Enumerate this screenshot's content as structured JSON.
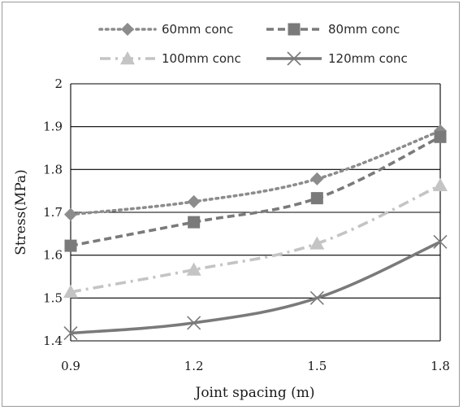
{
  "chart_data": {
    "type": "line",
    "title": "",
    "xlabel": "Joint spacing (m)",
    "ylabel": "Stress(MPa)",
    "x": [
      0.9,
      1.2,
      1.5,
      1.8
    ],
    "x_tick_labels": [
      "0.9",
      "1.2",
      "1.5",
      "1.8"
    ],
    "xlim": [
      0.9,
      1.8
    ],
    "ylim": [
      1.4,
      2.0
    ],
    "y_ticks": [
      1.4,
      1.5,
      1.6,
      1.7,
      1.8,
      1.9,
      2.0
    ],
    "y_tick_labels": [
      "1.4",
      "1.5",
      "1.6",
      "1.7",
      "1.8",
      "1.9",
      "2"
    ],
    "grid": "horizontal",
    "legend_position": "top",
    "series": [
      {
        "name": "60mm conc",
        "values": [
          1.695,
          1.725,
          1.778,
          1.89
        ],
        "color": "#8c8c8c",
        "line_style": "dotted",
        "marker": "diamond"
      },
      {
        "name": "80mm conc",
        "values": [
          1.622,
          1.677,
          1.733,
          1.876
        ],
        "color": "#7a7a7a",
        "line_style": "dashed",
        "marker": "square"
      },
      {
        "name": "100mm conc",
        "values": [
          1.514,
          1.566,
          1.627,
          1.763
        ],
        "color": "#c4c4c4",
        "line_style": "dash-dot",
        "marker": "triangle"
      },
      {
        "name": "120mm conc",
        "values": [
          1.418,
          1.442,
          1.5,
          1.631
        ],
        "color": "#7a7a7a",
        "line_style": "solid",
        "marker": "x"
      }
    ]
  }
}
